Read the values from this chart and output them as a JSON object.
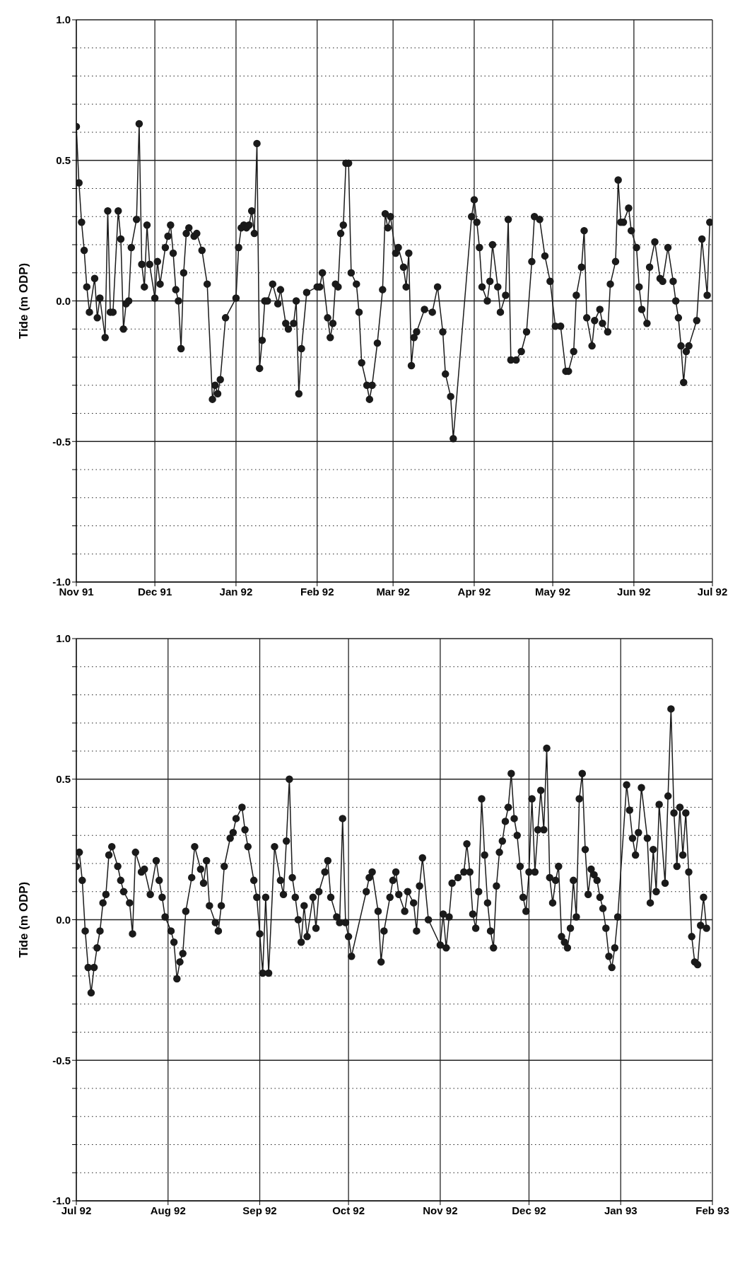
{
  "chart_data": [
    {
      "type": "line",
      "ylabel": "Tide (m ODP)",
      "color": "#1a1a1a",
      "marker": "circle",
      "line_style": "solid",
      "grid": true,
      "xlim": [
        "1991-11-01",
        "1992-07-01"
      ],
      "xticks": [
        {
          "value": "1991-11-01",
          "label": "Nov 91"
        },
        {
          "value": "1991-12-01",
          "label": "Dec 91"
        },
        {
          "value": "1992-01-01",
          "label": "Jan 92"
        },
        {
          "value": "1992-02-01",
          "label": "Feb 92"
        },
        {
          "value": "1992-03-01",
          "label": "Mar 92"
        },
        {
          "value": "1992-04-01",
          "label": "Apr 92"
        },
        {
          "value": "1992-05-01",
          "label": "May 92"
        },
        {
          "value": "1992-06-01",
          "label": "Jun 92"
        },
        {
          "value": "1992-07-01",
          "label": "Jul 92"
        }
      ],
      "ylim": [
        -1,
        1
      ],
      "yticks": [
        {
          "value": -1,
          "label": "-1.0"
        },
        {
          "value": -0.9,
          "label": null
        },
        {
          "value": -0.8,
          "label": null
        },
        {
          "value": -0.7,
          "label": null
        },
        {
          "value": -0.6,
          "label": null
        },
        {
          "value": -0.5,
          "label": "-0.5"
        },
        {
          "value": -0.4,
          "label": null
        },
        {
          "value": -0.3,
          "label": null
        },
        {
          "value": -0.2,
          "label": null
        },
        {
          "value": -0.1,
          "label": null
        },
        {
          "value": 0,
          "label": "0.0"
        },
        {
          "value": 0.1,
          "label": null
        },
        {
          "value": 0.2,
          "label": null
        },
        {
          "value": 0.3,
          "label": null
        },
        {
          "value": 0.4,
          "label": null
        },
        {
          "value": 0.5,
          "label": "0.5"
        },
        {
          "value": 0.6,
          "label": null
        },
        {
          "value": 0.7,
          "label": null
        },
        {
          "value": 0.8,
          "label": null
        },
        {
          "value": 0.9,
          "label": null
        },
        {
          "value": 1,
          "label": "1.0"
        }
      ],
      "x": [
        "1991-11-01",
        "1991-11-02",
        "1991-11-03",
        "1991-11-04",
        "1991-11-05",
        "1991-11-06",
        "1991-11-08",
        "1991-11-09",
        "1991-11-10",
        "1991-11-12",
        "1991-11-13",
        "1991-11-14",
        "1991-11-15",
        "1991-11-17",
        "1991-11-18",
        "1991-11-19",
        "1991-11-20",
        "1991-11-21",
        "1991-11-22",
        "1991-11-24",
        "1991-11-25",
        "1991-11-26",
        "1991-11-27",
        "1991-11-28",
        "1991-11-29",
        "1991-12-01",
        "1991-12-02",
        "1991-12-03",
        "1991-12-05",
        "1991-12-06",
        "1991-12-07",
        "1991-12-08",
        "1991-12-09",
        "1991-12-10",
        "1991-12-11",
        "1991-12-12",
        "1991-12-13",
        "1991-12-14",
        "1991-12-16",
        "1991-12-17",
        "1991-12-19",
        "1991-12-21",
        "1991-12-23",
        "1991-12-24",
        "1991-12-25",
        "1991-12-26",
        "1991-12-28",
        "1992-01-01",
        "1992-01-02",
        "1992-01-03",
        "1992-01-04",
        "1992-01-05",
        "1992-01-06",
        "1992-01-07",
        "1992-01-08",
        "1992-01-09",
        "1992-01-10",
        "1992-01-11",
        "1992-01-12",
        "1992-01-13",
        "1992-01-15",
        "1992-01-17",
        "1992-01-18",
        "1992-01-20",
        "1992-01-21",
        "1992-01-23",
        "1992-01-24",
        "1992-01-25",
        "1992-01-26",
        "1992-01-28",
        "1992-02-01",
        "1992-02-02",
        "1992-02-03",
        "1992-02-05",
        "1992-02-06",
        "1992-02-07",
        "1992-02-08",
        "1992-02-09",
        "1992-02-10",
        "1992-02-11",
        "1992-02-12",
        "1992-02-13",
        "1992-02-14",
        "1992-02-16",
        "1992-02-17",
        "1992-02-18",
        "1992-02-20",
        "1992-02-21",
        "1992-02-22",
        "1992-02-24",
        "1992-02-26",
        "1992-02-27",
        "1992-02-28",
        "1992-02-29",
        "1992-03-02",
        "1992-03-03",
        "1992-03-05",
        "1992-03-06",
        "1992-03-07",
        "1992-03-08",
        "1992-03-09",
        "1992-03-10",
        "1992-03-13",
        "1992-03-16",
        "1992-03-18",
        "1992-03-20",
        "1992-03-21",
        "1992-03-23",
        "1992-03-24",
        "1992-03-31",
        "1992-04-01",
        "1992-04-02",
        "1992-04-03",
        "1992-04-04",
        "1992-04-06",
        "1992-04-07",
        "1992-04-08",
        "1992-04-10",
        "1992-04-11",
        "1992-04-13",
        "1992-04-14",
        "1992-04-15",
        "1992-04-17",
        "1992-04-19",
        "1992-04-21",
        "1992-04-23",
        "1992-04-24",
        "1992-04-26",
        "1992-04-28",
        "1992-04-30",
        "1992-05-02",
        "1992-05-04",
        "1992-05-06",
        "1992-05-07",
        "1992-05-09",
        "1992-05-10",
        "1992-05-12",
        "1992-05-13",
        "1992-05-14",
        "1992-05-16",
        "1992-05-17",
        "1992-05-19",
        "1992-05-20",
        "1992-05-22",
        "1992-05-23",
        "1992-05-25",
        "1992-05-26",
        "1992-05-27",
        "1992-05-28",
        "1992-05-30",
        "1992-05-31",
        "1992-06-02",
        "1992-06-03",
        "1992-06-04",
        "1992-06-06",
        "1992-06-07",
        "1992-06-09",
        "1992-06-11",
        "1992-06-12",
        "1992-06-14",
        "1992-06-16",
        "1992-06-17",
        "1992-06-18",
        "1992-06-19",
        "1992-06-20",
        "1992-06-21",
        "1992-06-22",
        "1992-06-25",
        "1992-06-27",
        "1992-06-29",
        "1992-06-30"
      ],
      "values": [
        0.62,
        0.42,
        0.28,
        0.18,
        0.05,
        -0.04,
        0.08,
        -0.06,
        0.01,
        -0.13,
        0.32,
        -0.04,
        -0.04,
        0.32,
        0.22,
        -0.1,
        -0.01,
        0,
        0.19,
        0.29,
        0.63,
        0.13,
        0.05,
        0.27,
        0.13,
        0.01,
        0.14,
        0.06,
        0.19,
        0.23,
        0.27,
        0.17,
        0.04,
        0,
        -0.17,
        0.1,
        0.24,
        0.26,
        0.23,
        0.24,
        0.18,
        0.06,
        -0.35,
        -0.3,
        -0.33,
        -0.28,
        -0.06,
        0.01,
        0.19,
        0.26,
        0.27,
        0.26,
        0.27,
        0.32,
        0.24,
        0.56,
        -0.24,
        -0.14,
        0,
        0,
        0.06,
        -0.01,
        0.04,
        -0.08,
        -0.1,
        -0.08,
        0,
        -0.33,
        -0.17,
        0.03,
        0.05,
        0.05,
        0.1,
        -0.06,
        -0.13,
        -0.08,
        0.06,
        0.05,
        0.24,
        0.27,
        0.49,
        0.49,
        0.1,
        0.06,
        -0.04,
        -0.22,
        -0.3,
        -0.35,
        -0.3,
        -0.15,
        0.04,
        0.31,
        0.26,
        0.3,
        0.17,
        0.19,
        0.12,
        0.05,
        0.17,
        -0.23,
        -0.13,
        -0.11,
        -0.03,
        -0.04,
        0.05,
        -0.11,
        -0.26,
        -0.34,
        -0.49,
        0.3,
        0.36,
        0.28,
        0.19,
        0.05,
        0,
        0.07,
        0.2,
        0.05,
        -0.04,
        0.02,
        0.29,
        -0.21,
        -0.21,
        -0.18,
        -0.11,
        0.14,
        0.3,
        0.29,
        0.16,
        0.07,
        -0.09,
        -0.09,
        -0.25,
        -0.25,
        -0.18,
        0.02,
        0.12,
        0.25,
        -0.06,
        -0.16,
        -0.07,
        -0.03,
        -0.08,
        -0.11,
        0.06,
        0.14,
        0.43,
        0.28,
        0.28,
        0.33,
        0.25,
        0.19,
        0.05,
        -0.03,
        -0.08,
        0.12,
        0.21,
        0.08,
        0.07,
        0.19,
        0.07,
        0,
        -0.06,
        -0.16,
        -0.29,
        -0.18,
        -0.16,
        -0.07,
        0.22,
        0.02,
        0.28
      ]
    },
    {
      "type": "line",
      "ylabel": "Tide (m ODP)",
      "color": "#1a1a1a",
      "marker": "circle",
      "line_style": "solid",
      "grid": true,
      "xlim": [
        "1992-07-01",
        "1993-02-01"
      ],
      "xticks": [
        {
          "value": "1992-07-01",
          "label": "Jul 92"
        },
        {
          "value": "1992-08-01",
          "label": "Aug 92"
        },
        {
          "value": "1992-09-01",
          "label": "Sep 92"
        },
        {
          "value": "1992-10-01",
          "label": "Oct 92"
        },
        {
          "value": "1992-11-01",
          "label": "Nov 92"
        },
        {
          "value": "1992-12-01",
          "label": "Dec 92"
        },
        {
          "value": "1993-01-01",
          "label": "Jan 93"
        },
        {
          "value": "1993-02-01",
          "label": "Feb 93"
        }
      ],
      "ylim": [
        -1,
        1
      ],
      "yticks": [
        {
          "value": -1,
          "label": "-1.0"
        },
        {
          "value": -0.9,
          "label": null
        },
        {
          "value": -0.8,
          "label": null
        },
        {
          "value": -0.7,
          "label": null
        },
        {
          "value": -0.6,
          "label": null
        },
        {
          "value": -0.5,
          "label": "-0.5"
        },
        {
          "value": -0.4,
          "label": null
        },
        {
          "value": -0.3,
          "label": null
        },
        {
          "value": -0.2,
          "label": null
        },
        {
          "value": -0.1,
          "label": null
        },
        {
          "value": 0,
          "label": "0.0"
        },
        {
          "value": 0.1,
          "label": null
        },
        {
          "value": 0.2,
          "label": null
        },
        {
          "value": 0.3,
          "label": null
        },
        {
          "value": 0.4,
          "label": null
        },
        {
          "value": 0.5,
          "label": "0.5"
        },
        {
          "value": 0.6,
          "label": null
        },
        {
          "value": 0.7,
          "label": null
        },
        {
          "value": 0.8,
          "label": null
        },
        {
          "value": 0.9,
          "label": null
        },
        {
          "value": 1,
          "label": "1.0"
        }
      ],
      "x": [
        "1992-07-01",
        "1992-07-02",
        "1992-07-03",
        "1992-07-04",
        "1992-07-05",
        "1992-07-06",
        "1992-07-07",
        "1992-07-08",
        "1992-07-09",
        "1992-07-10",
        "1992-07-11",
        "1992-07-12",
        "1992-07-13",
        "1992-07-15",
        "1992-07-16",
        "1992-07-17",
        "1992-07-19",
        "1992-07-20",
        "1992-07-21",
        "1992-07-23",
        "1992-07-24",
        "1992-07-26",
        "1992-07-28",
        "1992-07-29",
        "1992-07-30",
        "1992-07-31",
        "1992-08-02",
        "1992-08-03",
        "1992-08-04",
        "1992-08-05",
        "1992-08-06",
        "1992-08-07",
        "1992-08-09",
        "1992-08-10",
        "1992-08-12",
        "1992-08-13",
        "1992-08-14",
        "1992-08-15",
        "1992-08-17",
        "1992-08-18",
        "1992-08-19",
        "1992-08-20",
        "1992-08-22",
        "1992-08-23",
        "1992-08-24",
        "1992-08-26",
        "1992-08-27",
        "1992-08-28",
        "1992-08-30",
        "1992-08-31",
        "1992-09-01",
        "1992-09-02",
        "1992-09-03",
        "1992-09-04",
        "1992-09-06",
        "1992-09-08",
        "1992-09-09",
        "1992-09-10",
        "1992-09-11",
        "1992-09-12",
        "1992-09-13",
        "1992-09-14",
        "1992-09-15",
        "1992-09-16",
        "1992-09-17",
        "1992-09-19",
        "1992-09-20",
        "1992-09-21",
        "1992-09-23",
        "1992-09-24",
        "1992-09-25",
        "1992-09-27",
        "1992-09-28",
        "1992-09-29",
        "1992-09-30",
        "1992-10-01",
        "1992-10-02",
        "1992-10-07",
        "1992-10-08",
        "1992-10-09",
        "1992-10-11",
        "1992-10-12",
        "1992-10-13",
        "1992-10-15",
        "1992-10-16",
        "1992-10-17",
        "1992-10-18",
        "1992-10-20",
        "1992-10-21",
        "1992-10-23",
        "1992-10-24",
        "1992-10-25",
        "1992-10-26",
        "1992-10-28",
        "1992-11-01",
        "1992-11-02",
        "1992-11-03",
        "1992-11-04",
        "1992-11-05",
        "1992-11-07",
        "1992-11-09",
        "1992-11-10",
        "1992-11-11",
        "1992-11-12",
        "1992-11-13",
        "1992-11-14",
        "1992-11-15",
        "1992-11-16",
        "1992-11-17",
        "1992-11-18",
        "1992-11-19",
        "1992-11-20",
        "1992-11-21",
        "1992-11-22",
        "1992-11-23",
        "1992-11-24",
        "1992-11-25",
        "1992-11-26",
        "1992-11-27",
        "1992-11-28",
        "1992-11-29",
        "1992-11-30",
        "1992-12-01",
        "1992-12-02",
        "1992-12-03",
        "1992-12-04",
        "1992-12-05",
        "1992-12-06",
        "1992-12-07",
        "1992-12-08",
        "1992-12-09",
        "1992-12-10",
        "1992-12-11",
        "1992-12-12",
        "1992-12-13",
        "1992-12-14",
        "1992-12-15",
        "1992-12-16",
        "1992-12-17",
        "1992-12-18",
        "1992-12-19",
        "1992-12-20",
        "1992-12-21",
        "1992-12-22",
        "1992-12-23",
        "1992-12-24",
        "1992-12-25",
        "1992-12-26",
        "1992-12-27",
        "1992-12-28",
        "1992-12-29",
        "1992-12-30",
        "1992-12-31",
        "1993-01-03",
        "1993-01-04",
        "1993-01-05",
        "1993-01-06",
        "1993-01-07",
        "1993-01-08",
        "1993-01-10",
        "1993-01-11",
        "1993-01-12",
        "1993-01-13",
        "1993-01-14",
        "1993-01-16",
        "1993-01-17",
        "1993-01-18",
        "1993-01-19",
        "1993-01-20",
        "1993-01-21",
        "1993-01-22",
        "1993-01-23",
        "1993-01-24",
        "1993-01-25",
        "1993-01-26",
        "1993-01-27",
        "1993-01-28",
        "1993-01-29",
        "1993-01-30"
      ],
      "values": [
        0.19,
        0.24,
        0.14,
        -0.04,
        -0.17,
        -0.26,
        -0.17,
        -0.1,
        -0.04,
        0.06,
        0.09,
        0.23,
        0.26,
        0.19,
        0.14,
        0.1,
        0.06,
        -0.05,
        0.24,
        0.17,
        0.18,
        0.09,
        0.21,
        0.14,
        0.08,
        0.01,
        -0.04,
        -0.08,
        -0.21,
        -0.15,
        -0.12,
        0.03,
        0.15,
        0.26,
        0.18,
        0.13,
        0.21,
        0.05,
        -0.01,
        -0.04,
        0.05,
        0.19,
        0.29,
        0.31,
        0.36,
        0.4,
        0.32,
        0.26,
        0.14,
        0.08,
        -0.05,
        -0.19,
        0.08,
        -0.19,
        0.26,
        0.14,
        0.09,
        0.28,
        0.5,
        0.15,
        0.08,
        0,
        -0.08,
        0.05,
        -0.06,
        0.08,
        -0.03,
        0.1,
        0.17,
        0.21,
        0.08,
        0.01,
        -0.01,
        0.36,
        -0.01,
        -0.06,
        -0.13,
        0.1,
        0.15,
        0.17,
        0.03,
        -0.15,
        -0.04,
        0.08,
        0.14,
        0.17,
        0.09,
        0.03,
        0.1,
        0.06,
        -0.04,
        0.12,
        0.22,
        0,
        -0.09,
        0.02,
        -0.1,
        0.01,
        0.13,
        0.15,
        0.17,
        0.27,
        0.17,
        0.02,
        -0.03,
        0.1,
        0.43,
        0.23,
        0.06,
        -0.04,
        -0.1,
        0.12,
        0.24,
        0.28,
        0.35,
        0.4,
        0.52,
        0.36,
        0.3,
        0.19,
        0.08,
        0.03,
        0.17,
        0.43,
        0.17,
        0.32,
        0.46,
        0.32,
        0.61,
        0.15,
        0.06,
        0.14,
        0.19,
        -0.06,
        -0.08,
        -0.1,
        -0.03,
        0.14,
        0.01,
        0.43,
        0.52,
        0.25,
        0.09,
        0.18,
        0.16,
        0.14,
        0.08,
        0.04,
        -0.03,
        -0.13,
        -0.17,
        -0.1,
        0.01,
        0.48,
        0.39,
        0.29,
        0.23,
        0.31,
        0.47,
        0.29,
        0.06,
        0.25,
        0.1,
        0.41,
        0.13,
        0.44,
        0.75,
        0.38,
        0.19,
        0.4,
        0.23,
        0.38,
        0.17,
        -0.06,
        -0.15,
        -0.16,
        -0.02,
        0.08,
        -0.03
      ]
    }
  ]
}
